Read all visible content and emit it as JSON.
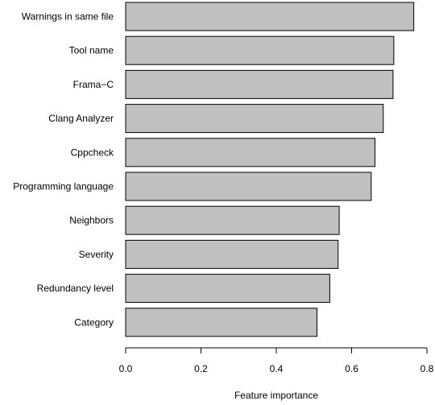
{
  "chart_data": {
    "type": "bar",
    "orientation": "horizontal",
    "categories": [
      "Warnings in same file",
      "Tool name",
      "Frama−C",
      "Clang Analyzer",
      "Cppcheck",
      "Programming language",
      "Neighbors",
      "Severity",
      "Redundancy level",
      "Category"
    ],
    "values": [
      0.765,
      0.712,
      0.71,
      0.684,
      0.662,
      0.652,
      0.567,
      0.564,
      0.542,
      0.508
    ],
    "xlabel": "Feature importance",
    "ylabel": "",
    "title": "",
    "xlim": [
      0,
      0.8
    ],
    "xticks": [
      0.0,
      0.2,
      0.4,
      0.6,
      0.8
    ],
    "xtick_labels": [
      "0.0",
      "0.2",
      "0.4",
      "0.6",
      "0.8"
    ],
    "grid": false,
    "colors": {
      "bar_fill": "#c0c0c0",
      "bar_stroke": "#000000"
    }
  }
}
